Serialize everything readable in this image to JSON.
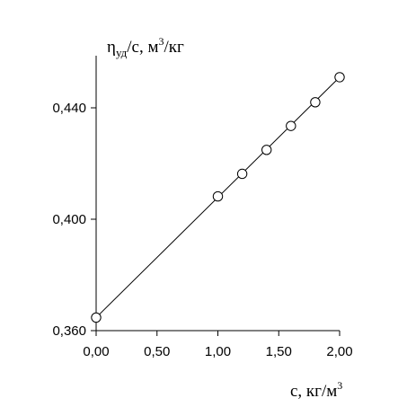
{
  "chart_data": {
    "type": "scatter",
    "title": "",
    "ylabel": {
      "symbol": "η",
      "subscript": "уд",
      "text": "/с, м",
      "superscript": "3",
      "tail": "/кг"
    },
    "xlabel": {
      "text": "с, кг/м",
      "superscript": "3"
    },
    "xlim": [
      0,
      2.0
    ],
    "ylim": [
      0.36,
      0.455
    ],
    "x_ticks": [
      {
        "value": 0.0,
        "label": "0,00"
      },
      {
        "value": 0.5,
        "label": "0,50"
      },
      {
        "value": 1.0,
        "label": "1,00"
      },
      {
        "value": 1.5,
        "label": "1,50"
      },
      {
        "value": 2.0,
        "label": "2,00"
      }
    ],
    "y_ticks": [
      {
        "value": 0.36,
        "label": "0,360"
      },
      {
        "value": 0.4,
        "label": "0,400"
      },
      {
        "value": 0.44,
        "label": "0,440"
      }
    ],
    "points": [
      {
        "x": 0.0,
        "y": 0.3647
      },
      {
        "x": 1.0,
        "y": 0.4082
      },
      {
        "x": 1.2,
        "y": 0.4163
      },
      {
        "x": 1.4,
        "y": 0.4249
      },
      {
        "x": 1.6,
        "y": 0.4335
      },
      {
        "x": 1.8,
        "y": 0.442
      },
      {
        "x": 2.0,
        "y": 0.451
      }
    ],
    "fit_line": {
      "x": [
        0.0,
        2.0
      ],
      "y": [
        0.3647,
        0.451
      ]
    },
    "grid": false,
    "legend": "none"
  }
}
